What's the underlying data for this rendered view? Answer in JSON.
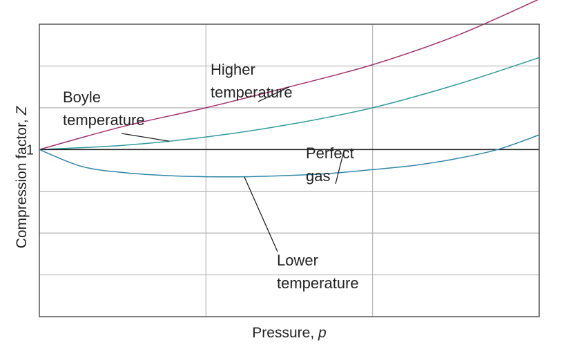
{
  "chart_data": {
    "type": "line",
    "xlabel": "Pressure, p",
    "ylabel": "Compression factor, Z",
    "xlim": [
      0,
      3
    ],
    "ylim": [
      -3,
      4
    ],
    "yticks": [
      {
        "value": 1,
        "label": "1"
      }
    ],
    "grid": true,
    "series": [
      {
        "name": "Higher temperature",
        "color": "#a3306e",
        "x": [
          0,
          0.5,
          1,
          1.5,
          2,
          2.5,
          3
        ],
        "y": [
          1,
          1.55,
          2.0,
          2.5,
          3.03,
          3.72,
          4.6
        ]
      },
      {
        "name": "Boyle temperature",
        "color": "#2e9aa0",
        "x": [
          0,
          0.5,
          1,
          1.5,
          2,
          2.5,
          3
        ],
        "y": [
          1,
          1.1,
          1.3,
          1.6,
          2.0,
          2.55,
          3.2
        ]
      },
      {
        "name": "Perfect gas",
        "color": "#222222",
        "x": [
          0,
          3
        ],
        "y": [
          1,
          1
        ]
      },
      {
        "name": "Lower temperature",
        "color": "#2f86aa",
        "x": [
          0,
          0.25,
          0.5,
          0.75,
          1,
          1.25,
          1.5,
          1.75,
          2,
          2.25,
          2.5,
          2.75,
          3
        ],
        "y": [
          1,
          0.6,
          0.45,
          0.38,
          0.35,
          0.35,
          0.38,
          0.43,
          0.52,
          0.62,
          0.78,
          1.0,
          1.35
        ]
      }
    ],
    "annotations": [
      {
        "lines": [
          "Higher",
          "temperature"
        ],
        "series": 0
      },
      {
        "lines": [
          "Boyle",
          "temperature"
        ],
        "series": 1
      },
      {
        "lines": [
          "Perfect",
          "gas"
        ],
        "series": 2
      },
      {
        "lines": [
          "Lower",
          "temperature"
        ],
        "series": 3
      }
    ]
  }
}
